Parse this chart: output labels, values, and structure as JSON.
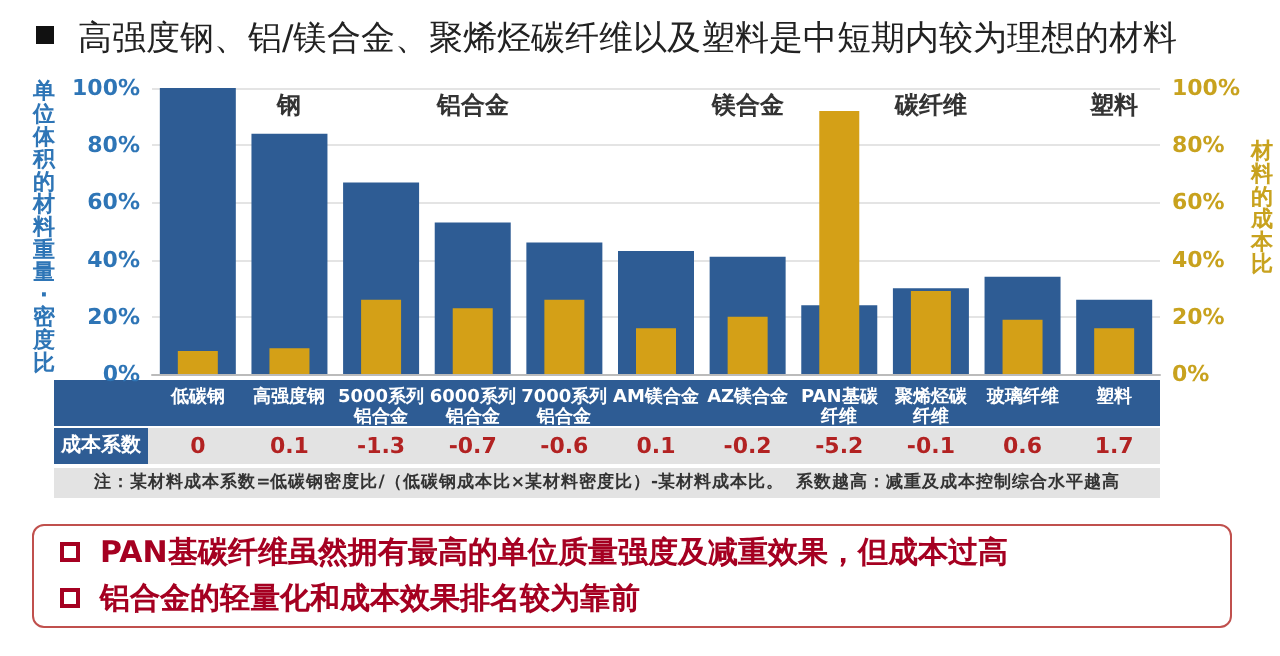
{
  "chart_data": {
    "type": "bar",
    "title": "高强度钢、铝/镁合金、聚烯烃碳纤维以及塑料是中短期内较为理想的材料",
    "ylabel": "单位体积的材料重量·密度比",
    "y2label": "材料的成本比",
    "categories": [
      "低碳钢",
      "高强度钢",
      "5000系列铝合金",
      "6000系列铝合金",
      "7000系列铝合金",
      "AM镁合金",
      "AZ镁合金",
      "PAN基碳纤维",
      "聚烯烃碳纤维",
      "玻璃纤维",
      "塑料"
    ],
    "series": [
      {
        "color": "#2e5c94",
        "values": [
          100,
          84,
          67,
          53,
          46,
          43,
          41,
          24,
          30,
          34,
          26
        ]
      },
      {
        "color": "#d4a017",
        "axis": "y2",
        "values": [
          8,
          9,
          26,
          23,
          26,
          16,
          20,
          92,
          29,
          19,
          16
        ]
      }
    ],
    "ylim": [
      0,
      100
    ],
    "yticks": [
      {
        "value": 0,
        "label": "0%"
      },
      {
        "value": 20,
        "label": "20%"
      },
      {
        "value": 40,
        "label": "40%"
      },
      {
        "value": 60,
        "label": "60%"
      },
      {
        "value": 80,
        "label": "80%"
      },
      {
        "value": 100,
        "label": "100%"
      }
    ],
    "y2lim": [
      0,
      100
    ],
    "y2ticks": [
      {
        "value": 0,
        "label": "0%"
      },
      {
        "value": 20,
        "label": "20%"
      },
      {
        "value": 40,
        "label": "40%"
      },
      {
        "value": 60,
        "label": "60%"
      },
      {
        "value": 80,
        "label": "80%"
      },
      {
        "value": 100,
        "label": "100%"
      }
    ],
    "grid": "y",
    "annotations": [
      "成本系数",
      "注：某材料成本系数=低碳钢密度比/（低碳钢成本比×某材料密度比）-某材料成本比。  系数越高：减重及成本控制综合水平越高",
      "PAN基碳纤维虽然拥有最高的单位质量强度及减重效果，但成本过高",
      "铝合金的轻量化和成本效果排名较为靠前",
      "钢",
      "铝合金",
      "镁合金",
      "碳纤维",
      "塑料",
      "0",
      "0.1",
      "-1.3",
      "-0.7",
      "-0.6",
      "0.1",
      "-0.2",
      "-5.2",
      "-0.1",
      "0.6",
      "1.7"
    ]
  }
}
